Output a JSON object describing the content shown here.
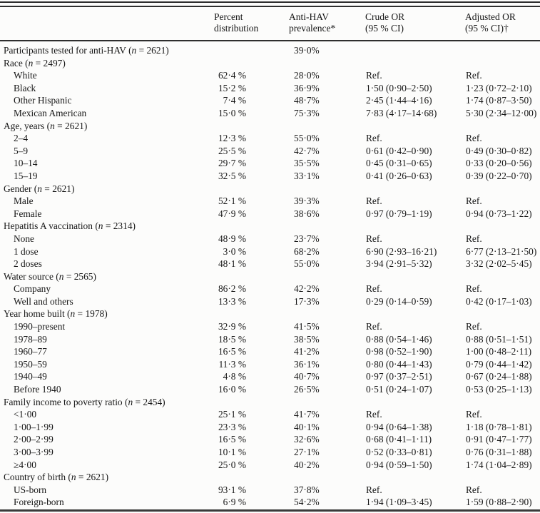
{
  "page": {
    "background": "#fcfcfb",
    "text_color": "#161616",
    "rule_color": "#2e2e2e",
    "rule_color_light": "#9e9e9e"
  },
  "n_format": {
    "open": "(",
    "symbol": "n",
    "equals": " = ",
    "close": ")"
  },
  "header": {
    "columns": [
      {
        "line1": "",
        "line2": ""
      },
      {
        "line1": "Percent",
        "line2": "distribution"
      },
      {
        "line1": "Anti-HAV",
        "line2": "prevalence*"
      },
      {
        "line1": "Crude OR",
        "line2": "(95 % CI)"
      },
      {
        "line1": "Adjusted OR",
        "line2": "(95 % CI)†"
      }
    ]
  },
  "rows": [
    {
      "label": "Participants tested for anti-HAV",
      "n": "2621",
      "indent": false,
      "pct": "",
      "prev": "39·0%",
      "crude": "",
      "adj": ""
    },
    {
      "label": "Race",
      "n": "2497",
      "indent": false,
      "pct": "",
      "prev": "",
      "crude": "",
      "adj": ""
    },
    {
      "label": "White",
      "indent": true,
      "pct": "62·4 %",
      "prev": "28·0%",
      "crude": "Ref.",
      "adj": "Ref."
    },
    {
      "label": "Black",
      "indent": true,
      "pct": "15·2 %",
      "prev": "36·9%",
      "crude": "1·50 (0·90–2·50)",
      "adj": "1·23 (0·72–2·10)"
    },
    {
      "label": "Other Hispanic",
      "indent": true,
      "pct": "7·4 %",
      "prev": "48·7%",
      "crude": "2·45 (1·44–4·16)",
      "adj": "1·74 (0·87–3·50)"
    },
    {
      "label": "Mexican American",
      "indent": true,
      "pct": "15·0 %",
      "prev": "75·3%",
      "crude": "7·83 (4·17–14·68)",
      "adj": "5·30 (2·34–12·00)"
    },
    {
      "label": "Age, years",
      "n": "2621",
      "indent": false,
      "pct": "",
      "prev": "",
      "crude": "",
      "adj": ""
    },
    {
      "label": "2–4",
      "indent": true,
      "pct": "12·3 %",
      "prev": "55·0%",
      "crude": "Ref.",
      "adj": "Ref."
    },
    {
      "label": "5–9",
      "indent": true,
      "pct": "25·5 %",
      "prev": "42·7%",
      "crude": "0·61 (0·42–0·90)",
      "adj": "0·49 (0·30–0·82)"
    },
    {
      "label": "10–14",
      "indent": true,
      "pct": "29·7 %",
      "prev": "35·5%",
      "crude": "0·45 (0·31–0·65)",
      "adj": "0·33 (0·20–0·56)"
    },
    {
      "label": "15–19",
      "indent": true,
      "pct": "32·5 %",
      "prev": "33·1%",
      "crude": "0·41 (0·26–0·63)",
      "adj": "0·39 (0·22–0·70)"
    },
    {
      "label": "Gender",
      "n": "2621",
      "indent": false,
      "pct": "",
      "prev": "",
      "crude": "",
      "adj": ""
    },
    {
      "label": "Male",
      "indent": true,
      "pct": "52·1 %",
      "prev": "39·3%",
      "crude": "Ref.",
      "adj": "Ref."
    },
    {
      "label": "Female",
      "indent": true,
      "pct": "47·9 %",
      "prev": "38·6%",
      "crude": "0·97 (0·79–1·19)",
      "adj": "0·94 (0·73–1·22)"
    },
    {
      "label": "Hepatitis A vaccination",
      "n": "2314",
      "indent": false,
      "pct": "",
      "prev": "",
      "crude": "",
      "adj": ""
    },
    {
      "label": "None",
      "indent": true,
      "pct": "48·9 %",
      "prev": "23·7%",
      "crude": "Ref.",
      "adj": "Ref."
    },
    {
      "label": "1 dose",
      "indent": true,
      "pct": "3·0 %",
      "prev": "68·2%",
      "crude": "6·90 (2·93–16·21)",
      "adj": "6·77 (2·13–21·50)"
    },
    {
      "label": "2 doses",
      "indent": true,
      "pct": "48·1 %",
      "prev": "55·0%",
      "crude": "3·94 (2·91–5·32)",
      "adj": "3·32 (2·02–5·45)"
    },
    {
      "label": "Water source",
      "n": "2565",
      "indent": false,
      "pct": "",
      "prev": "",
      "crude": "",
      "adj": ""
    },
    {
      "label": "Company",
      "indent": true,
      "pct": "86·2 %",
      "prev": "42·2%",
      "crude": "Ref.",
      "adj": "Ref."
    },
    {
      "label": "Well and others",
      "indent": true,
      "pct": "13·3 %",
      "prev": "17·3%",
      "crude": "0·29 (0·14–0·59)",
      "adj": "0·42 (0·17–1·03)"
    },
    {
      "label": "Year home built",
      "n": "1978",
      "indent": false,
      "pct": "",
      "prev": "",
      "crude": "",
      "adj": ""
    },
    {
      "label": "1990–present",
      "indent": true,
      "pct": "32·9 %",
      "prev": "41·5%",
      "crude": "Ref.",
      "adj": "Ref."
    },
    {
      "label": "1978–89",
      "indent": true,
      "pct": "18·5 %",
      "prev": "38·5%",
      "crude": "0·88 (0·54–1·46)",
      "adj": "0·88 (0·51–1·51)"
    },
    {
      "label": "1960–77",
      "indent": true,
      "pct": "16·5 %",
      "prev": "41·2%",
      "crude": "0·98 (0·52–1·90)",
      "adj": "1·00 (0·48–2·11)"
    },
    {
      "label": "1950–59",
      "indent": true,
      "pct": "11·3 %",
      "prev": "36·1%",
      "crude": "0·80 (0·44–1·43)",
      "adj": "0·79 (0·44–1·42)"
    },
    {
      "label": "1940–49",
      "indent": true,
      "pct": "4·8 %",
      "prev": "40·7%",
      "crude": "0·97 (0·37–2·51)",
      "adj": "0·67 (0·24–1·88)"
    },
    {
      "label": "Before 1940",
      "indent": true,
      "pct": "16·0 %",
      "prev": "26·5%",
      "crude": "0·51 (0·24–1·07)",
      "adj": "0·53 (0·25–1·13)"
    },
    {
      "label": "Family income to poverty ratio",
      "n": "2454",
      "indent": false,
      "pct": "",
      "prev": "",
      "crude": "",
      "adj": ""
    },
    {
      "label": "<1·00",
      "indent": true,
      "pct": "25·1 %",
      "prev": "41·7%",
      "crude": "Ref.",
      "adj": "Ref."
    },
    {
      "label": "1·00–1·99",
      "indent": true,
      "pct": "23·3 %",
      "prev": "40·1%",
      "crude": "0·94 (0·64–1·38)",
      "adj": "1·18 (0·78–1·81)"
    },
    {
      "label": "2·00–2·99",
      "indent": true,
      "pct": "16·5 %",
      "prev": "32·6%",
      "crude": "0·68 (0·41–1·11)",
      "adj": "0·91 (0·47–1·77)"
    },
    {
      "label": "3·00–3·99",
      "indent": true,
      "pct": "10·1 %",
      "prev": "27·1%",
      "crude": "0·52 (0·33–0·81)",
      "adj": "0·76 (0·31–1·88)"
    },
    {
      "label": "≥4·00",
      "indent": true,
      "pct": "25·0 %",
      "prev": "40·2%",
      "crude": "0·94 (0·59–1·50)",
      "adj": "1·74 (1·04–2·89)"
    },
    {
      "label": "Country of birth",
      "n": "2621",
      "indent": false,
      "pct": "",
      "prev": "",
      "crude": "",
      "adj": ""
    },
    {
      "label": "US-born",
      "indent": true,
      "pct": "93·1 %",
      "prev": "37·8%",
      "crude": "Ref.",
      "adj": "Ref."
    },
    {
      "label": "Foreign-born",
      "indent": true,
      "pct": "6·9 %",
      "prev": "54·2%",
      "crude": "1·94 (1·09–3·45)",
      "adj": "1·59 (0·88–2·90)"
    }
  ]
}
